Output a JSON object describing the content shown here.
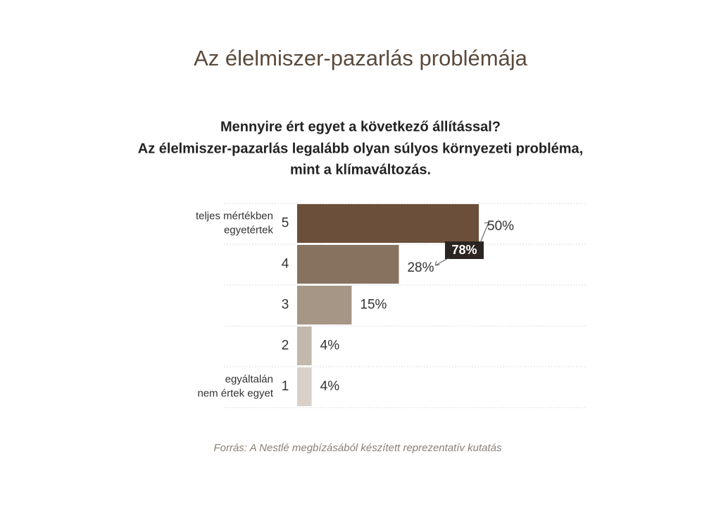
{
  "chart_data": {
    "type": "bar",
    "title": "Az élelmiszer-pazarlás problémája",
    "subtitle": [
      "Mennyire ért egyet a következő állítással?",
      "Az élelmiszer-pazarlás legalább olyan súlyos környezeti probléma,",
      "mint a klímaváltozás."
    ],
    "categories": [
      "5",
      "4",
      "3",
      "2",
      "1"
    ],
    "category_descriptions": [
      [
        "teljes mértékben",
        "egyetértek"
      ],
      null,
      null,
      null,
      [
        "egyáltalán",
        "nem értek egyet"
      ]
    ],
    "values": [
      50,
      28,
      15,
      4,
      4
    ],
    "value_labels": [
      "50%",
      "28%",
      "15%",
      "4%",
      "4%"
    ],
    "colors": [
      "#6b4f3a",
      "#87725f",
      "#a69685",
      "#c3b8ac",
      "#d9d1c9"
    ],
    "annotation": {
      "value": 78,
      "label": "78%"
    },
    "source": "Forrás: A Nestlé megbízásából készített reprezentatív kutatás",
    "grid": true
  }
}
